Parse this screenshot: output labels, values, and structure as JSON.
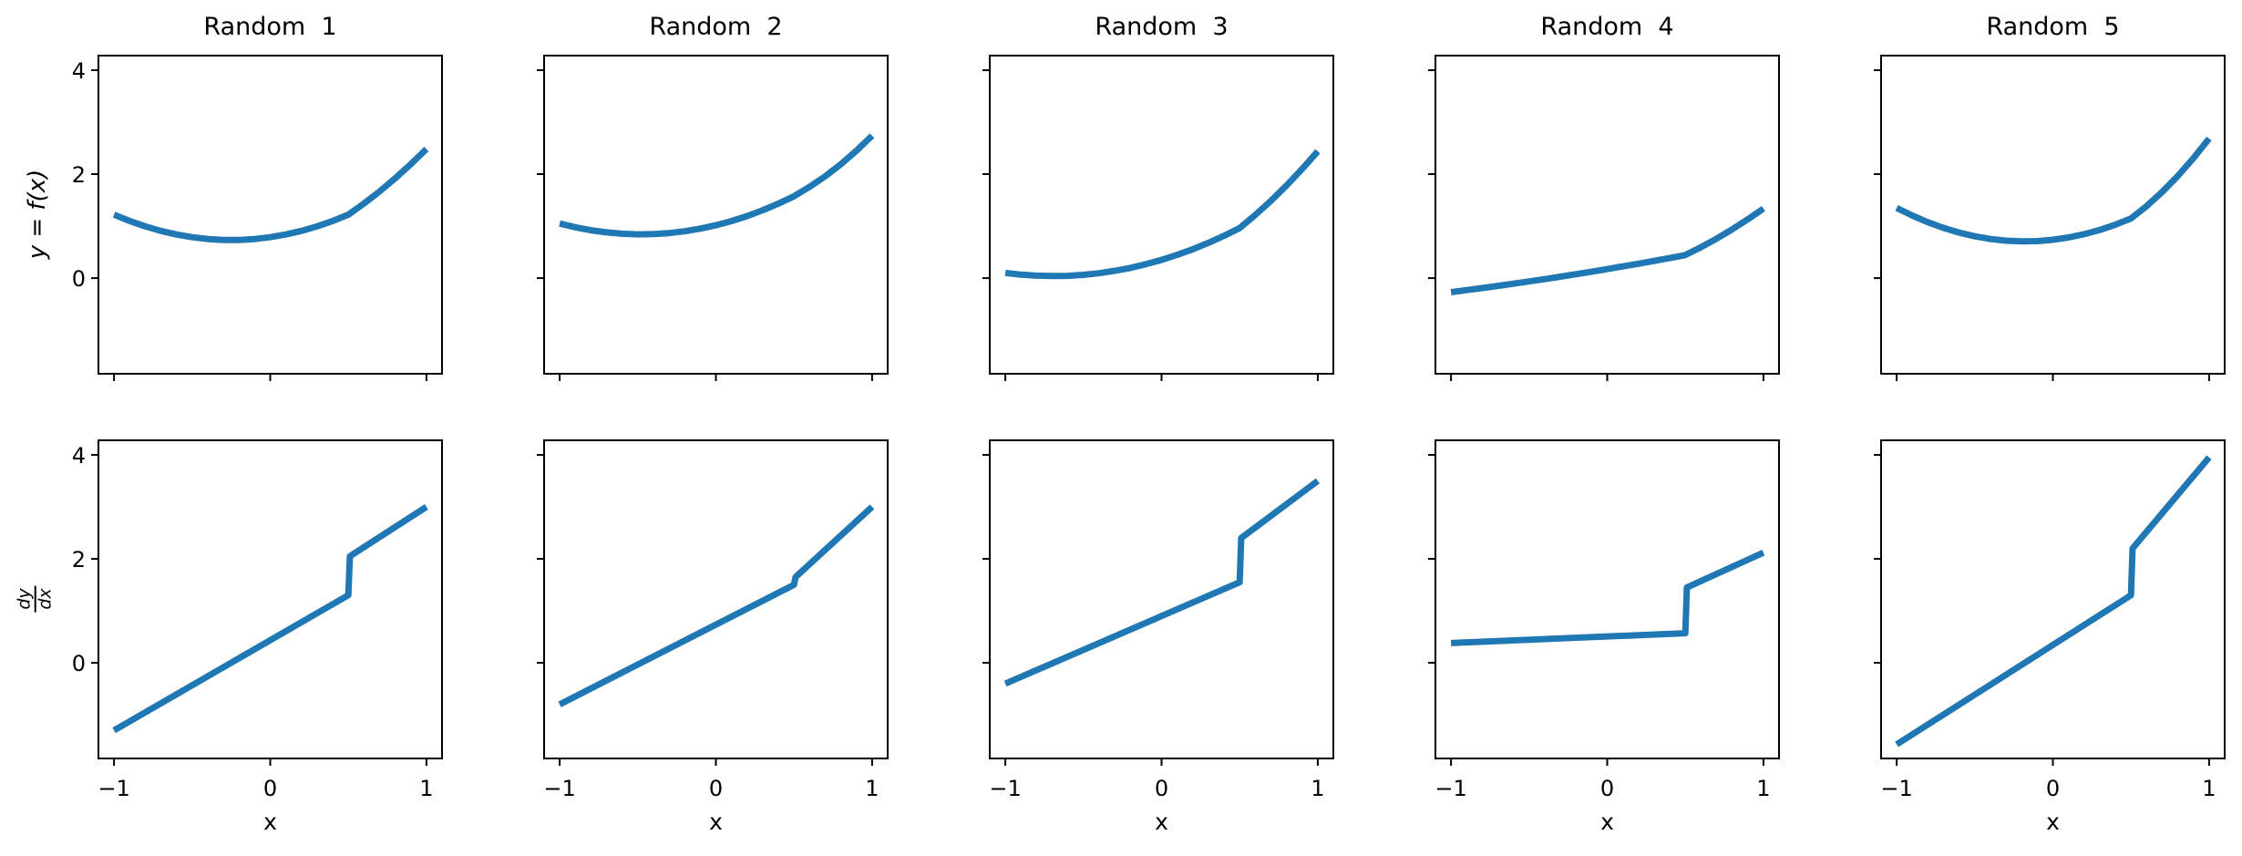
{
  "figure": {
    "background": "#ffffff",
    "line_color": "#1f77b4",
    "axis_color": "#000000",
    "xlabel": "x",
    "ylabel_top": "y = f(x)",
    "ylabel_bottom_numerator": "dy",
    "ylabel_bottom_denominator": "dx",
    "xlim": [
      -1.1,
      1.1
    ],
    "ylim": [
      -1.84,
      4.28
    ],
    "xtick_values": [
      -1,
      0,
      1
    ],
    "xtick_labels": [
      "−1",
      "0",
      "1"
    ],
    "ytick_values": [
      0,
      2,
      4
    ],
    "ytick_labels": [
      "0",
      "2",
      "4"
    ],
    "grid": false,
    "legend": false
  },
  "chart_data": [
    {
      "type": "line",
      "row": 0,
      "col": 0,
      "title": "Random  1",
      "series": "y = f(x)",
      "x": [
        -1,
        -0.9,
        -0.8,
        -0.7,
        -0.6,
        -0.5,
        -0.4,
        -0.3,
        -0.2,
        -0.1,
        0,
        0.1,
        0.2,
        0.3,
        0.4,
        0.5,
        0.6,
        0.7,
        0.8,
        0.9,
        1
      ],
      "y": [
        1.22,
        1.099,
        0.995,
        0.908,
        0.839,
        0.787,
        0.752,
        0.735,
        0.735,
        0.752,
        0.787,
        0.839,
        0.908,
        0.995,
        1.099,
        1.22,
        1.434,
        1.668,
        1.92,
        2.192,
        2.483
      ]
    },
    {
      "type": "line",
      "row": 0,
      "col": 1,
      "title": "Random  2",
      "series": "y = f(x)",
      "x": [
        -1,
        -0.9,
        -0.8,
        -0.7,
        -0.6,
        -0.5,
        -0.4,
        -0.3,
        -0.2,
        -0.1,
        0,
        0.1,
        0.2,
        0.3,
        0.4,
        0.5,
        0.6,
        0.7,
        0.8,
        0.9,
        1
      ],
      "y": [
        1.05,
        0.978,
        0.921,
        0.879,
        0.853,
        0.842,
        0.846,
        0.866,
        0.901,
        0.951,
        1.017,
        1.098,
        1.194,
        1.306,
        1.433,
        1.575,
        1.754,
        1.959,
        2.192,
        2.451,
        2.738
      ]
    },
    {
      "type": "line",
      "row": 0,
      "col": 2,
      "title": "Random  3",
      "series": "y = f(x)",
      "x": [
        -1,
        -0.9,
        -0.8,
        -0.7,
        -0.6,
        -0.5,
        -0.4,
        -0.3,
        -0.2,
        -0.1,
        0,
        0.1,
        0.2,
        0.3,
        0.4,
        0.5,
        0.6,
        0.7,
        0.8,
        0.9,
        1
      ],
      "y": [
        0.1,
        0.067,
        0.046,
        0.039,
        0.044,
        0.063,
        0.094,
        0.139,
        0.196,
        0.267,
        0.35,
        0.447,
        0.556,
        0.679,
        0.814,
        0.963,
        1.214,
        1.487,
        1.782,
        2.099,
        2.438
      ]
    },
    {
      "type": "line",
      "row": 0,
      "col": 3,
      "title": "Random  4",
      "series": "y = f(x)",
      "x": [
        -1,
        -0.9,
        -0.8,
        -0.7,
        -0.6,
        -0.5,
        -0.4,
        -0.3,
        -0.2,
        -0.1,
        0,
        0.1,
        0.2,
        0.3,
        0.4,
        0.5,
        0.6,
        0.7,
        0.8,
        0.9,
        1
      ],
      "y": [
        -0.27,
        -0.231,
        -0.192,
        -0.15,
        -0.108,
        -0.064,
        -0.019,
        0.027,
        0.075,
        0.123,
        0.173,
        0.225,
        0.277,
        0.331,
        0.386,
        0.443,
        0.594,
        0.759,
        0.938,
        1.13,
        1.335
      ]
    },
    {
      "type": "line",
      "row": 0,
      "col": 4,
      "title": "Random  5",
      "series": "y = f(x)",
      "x": [
        -1,
        -0.9,
        -0.8,
        -0.7,
        -0.6,
        -0.5,
        -0.4,
        -0.3,
        -0.2,
        -0.1,
        0,
        0.1,
        0.2,
        0.3,
        0.4,
        0.5,
        0.6,
        0.7,
        0.8,
        0.9,
        1
      ],
      "y": [
        1.35,
        1.203,
        1.074,
        0.965,
        0.875,
        0.804,
        0.752,
        0.72,
        0.706,
        0.712,
        0.737,
        0.781,
        0.844,
        0.926,
        1.027,
        1.148,
        1.385,
        1.658,
        1.965,
        2.308,
        2.685
      ]
    },
    {
      "type": "line",
      "row": 1,
      "col": 0,
      "title": "Random  1",
      "series": "dy/dx",
      "jump_at": 0.5,
      "x": [
        -1,
        0.5,
        0.51,
        1
      ],
      "y": [
        -1.3,
        1.3,
        2.05,
        3.0
      ]
    },
    {
      "type": "line",
      "row": 1,
      "col": 1,
      "title": "Random  2",
      "series": "dy/dx",
      "jump_at": 0.5,
      "x": [
        -1,
        0.5,
        0.51,
        1
      ],
      "y": [
        -0.8,
        1.5,
        1.65,
        3.0
      ]
    },
    {
      "type": "line",
      "row": 1,
      "col": 2,
      "title": "Random  3",
      "series": "dy/dx",
      "jump_at": 0.5,
      "x": [
        -1,
        0.5,
        0.51,
        1
      ],
      "y": [
        -0.4,
        1.55,
        2.4,
        3.5
      ]
    },
    {
      "type": "line",
      "row": 1,
      "col": 3,
      "title": "Random  4",
      "series": "dy/dx",
      "jump_at": 0.5,
      "x": [
        -1,
        0.5,
        0.51,
        1
      ],
      "y": [
        0.38,
        0.57,
        1.45,
        2.12
      ]
    },
    {
      "type": "line",
      "row": 1,
      "col": 4,
      "title": "Random  5",
      "series": "dy/dx",
      "jump_at": 0.5,
      "x": [
        -1,
        0.5,
        0.51,
        1
      ],
      "y": [
        -1.57,
        1.3,
        2.2,
        3.95
      ]
    }
  ]
}
